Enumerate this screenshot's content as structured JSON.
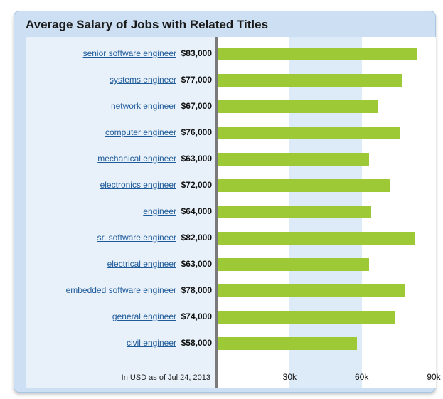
{
  "card": {
    "title": "Average Salary of Jobs with Related Titles",
    "footnote": "In USD as of Jul 24, 2013"
  },
  "colors": {
    "bar": "#9ec937",
    "link": "#1f5b9a",
    "frame": "#cde0f3",
    "band": "#ddeaf7"
  },
  "chart_data": {
    "type": "bar",
    "orientation": "horizontal",
    "title": "Average Salary of Jobs with Related Titles",
    "categories": [
      "senior software engineer",
      "systems engineer",
      "network engineer",
      "computer engineer",
      "mechanical engineer",
      "electronics engineer",
      "engineer",
      "sr. software engineer",
      "electrical engineer",
      "embedded software engineer",
      "general engineer",
      "civil engineer"
    ],
    "values": [
      83000,
      77000,
      67000,
      76000,
      63000,
      72000,
      64000,
      82000,
      63000,
      78000,
      74000,
      58000
    ],
    "value_labels": [
      "$83,000",
      "$77,000",
      "$67,000",
      "$76,000",
      "$63,000",
      "$72,000",
      "$64,000",
      "$82,000",
      "$63,000",
      "$78,000",
      "$74,000",
      "$58,000"
    ],
    "ticks": [
      {
        "value": 30000,
        "label": "30k"
      },
      {
        "value": 60000,
        "label": "60k"
      },
      {
        "value": 90000,
        "label": "90k"
      }
    ],
    "xlim": [
      0,
      90000
    ],
    "shaded_band": [
      30000,
      60000
    ],
    "grid": false,
    "legend": "none"
  }
}
